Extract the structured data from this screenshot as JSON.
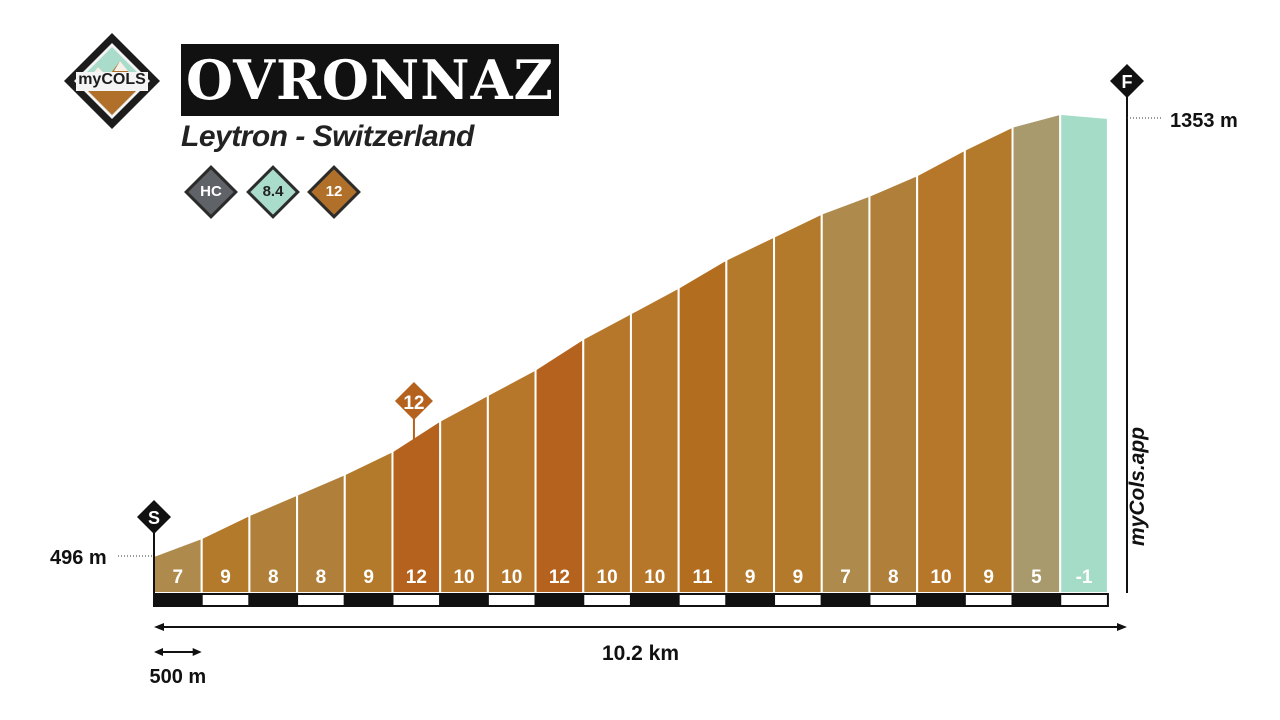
{
  "header": {
    "title": "OVRONNAZ",
    "subtitle": "Leytron - Switzerland",
    "logo_text": "myCOLS",
    "badges": [
      {
        "label": "HC",
        "color": "#5f6368"
      },
      {
        "label": "8.4",
        "color": "#a9dccb",
        "text_color": "#222222"
      },
      {
        "label": "12",
        "color": "#b0702a"
      }
    ]
  },
  "watermark": "myCols.app",
  "chart_data": {
    "type": "area",
    "title": "OVRONNAZ",
    "subtitle": "Leytron - Switzerland",
    "total_distance_label": "10.2 km",
    "scale_label": "500 m",
    "start_marker": "S",
    "finish_marker": "F",
    "start_elevation_label": "496 m",
    "finish_elevation_label": "1353 m",
    "start_elevation_m": 496,
    "finish_elevation_m": 1353,
    "total_distance_km": 10.2,
    "segment_length_km": 0.5,
    "max_gradient_label": "12",
    "max_gradient_segment_index": 5,
    "gradients": [
      7,
      9,
      8,
      8,
      9,
      12,
      10,
      10,
      12,
      10,
      10,
      11,
      9,
      9,
      7,
      8,
      10,
      9,
      5,
      -1
    ],
    "segment_end_elevations_m": [
      531,
      576,
      616,
      656,
      701,
      761,
      811,
      861,
      921,
      971,
      1021,
      1076,
      1121,
      1166,
      1201,
      1241,
      1291,
      1336,
      1361,
      1353
    ],
    "colors": {
      "gradient_5": "#a89a6c",
      "gradient_7": "#ae8b4d",
      "gradient_8": "#b0803b",
      "gradient_9": "#b37a2c",
      "gradient_10": "#b7772a",
      "gradient_11": "#b36d1f",
      "gradient_12": "#b5621f",
      "gradient_neg": "#a4dcc8",
      "axis": "#111111"
    }
  }
}
